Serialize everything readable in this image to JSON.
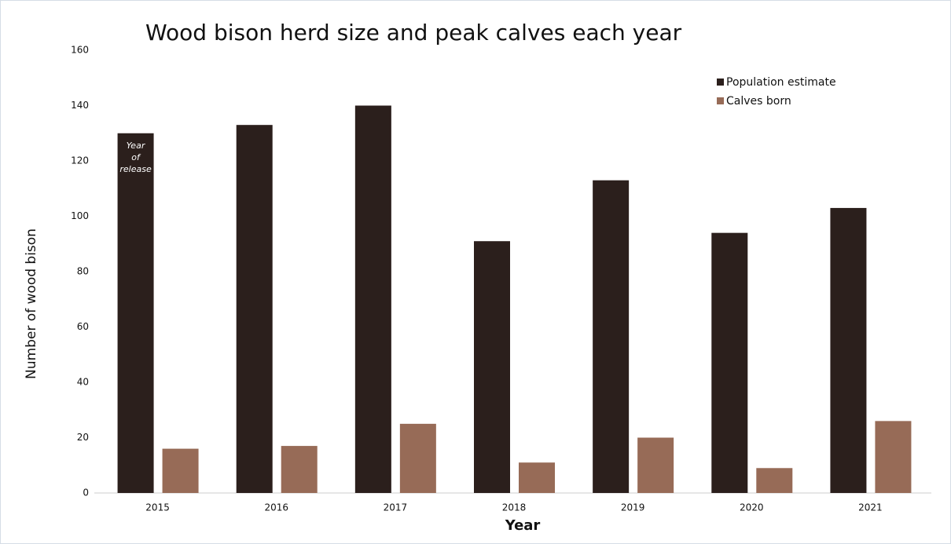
{
  "chart_data": {
    "type": "bar",
    "title": "Wood bison herd size and peak calves each year",
    "x_label": "Year",
    "y_label": "Number of wood bison",
    "categories": [
      "2015",
      "2016",
      "2017",
      "2018",
      "2019",
      "2020",
      "2021"
    ],
    "series": [
      {
        "name": "Population estimate",
        "color": "#2b1f1c",
        "values": [
          130,
          133,
          140,
          91,
          113,
          94,
          103
        ]
      },
      {
        "name": "Calves born",
        "color": "#976b57",
        "values": [
          16,
          17,
          25,
          11,
          20,
          9,
          26
        ]
      }
    ],
    "annotation": [
      "Year",
      "of",
      "release"
    ],
    "ylim": [
      0,
      160
    ],
    "yticks": [
      0,
      20,
      40,
      60,
      80,
      100,
      120,
      140,
      160
    ],
    "grid": false,
    "legend": "upper-right"
  }
}
